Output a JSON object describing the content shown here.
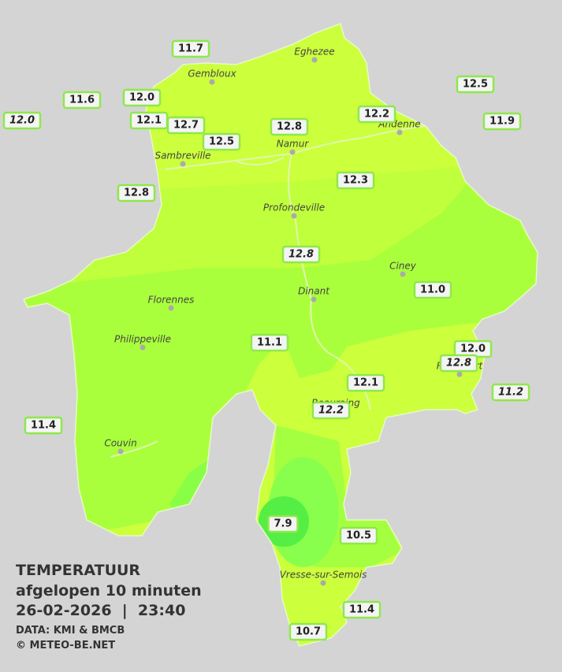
{
  "legend": {
    "title": "TEMPERATUUR",
    "subtitle": "afgelopen 10 minuten",
    "timestamp": "26-02-2026  |  23:40",
    "source": "DATA: KMI & BMCB",
    "copyright": "© METEO-BE.NET"
  },
  "cities": [
    "Eghezee",
    "Gembloux",
    "Andenne",
    "Namur",
    "Sambreville",
    "Profondeville",
    "Ciney",
    "Dinant",
    "Florennes",
    "Philippeville",
    "Rochefort",
    "Beauraing",
    "Couvin",
    "Vresse-sur-Semois"
  ],
  "stations": [
    {
      "label": "11.7",
      "italic": false
    },
    {
      "label": "11.6",
      "italic": false
    },
    {
      "label": "12.0",
      "italic": false
    },
    {
      "label": "12.0",
      "italic": true
    },
    {
      "label": "12.1",
      "italic": false
    },
    {
      "label": "12.7",
      "italic": false
    },
    {
      "label": "12.5",
      "italic": false
    },
    {
      "label": "12.8",
      "italic": false
    },
    {
      "label": "12.2",
      "italic": false
    },
    {
      "label": "12.5",
      "italic": false
    },
    {
      "label": "11.9",
      "italic": false
    },
    {
      "label": "12.3",
      "italic": false
    },
    {
      "label": "12.8",
      "italic": false
    },
    {
      "label": "12.8",
      "italic": true
    },
    {
      "label": "11.0",
      "italic": false
    },
    {
      "label": "11.1",
      "italic": false
    },
    {
      "label": "12.0",
      "italic": false
    },
    {
      "label": "12.8",
      "italic": true
    },
    {
      "label": "12.1",
      "italic": false
    },
    {
      "label": "11.2",
      "italic": true
    },
    {
      "label": "12.2",
      "italic": true
    },
    {
      "label": "11.4",
      "italic": false
    },
    {
      "label": "7.9",
      "italic": false
    },
    {
      "label": "10.5",
      "italic": false
    },
    {
      "label": "11.4",
      "italic": false
    },
    {
      "label": "10.7",
      "italic": false
    }
  ]
}
